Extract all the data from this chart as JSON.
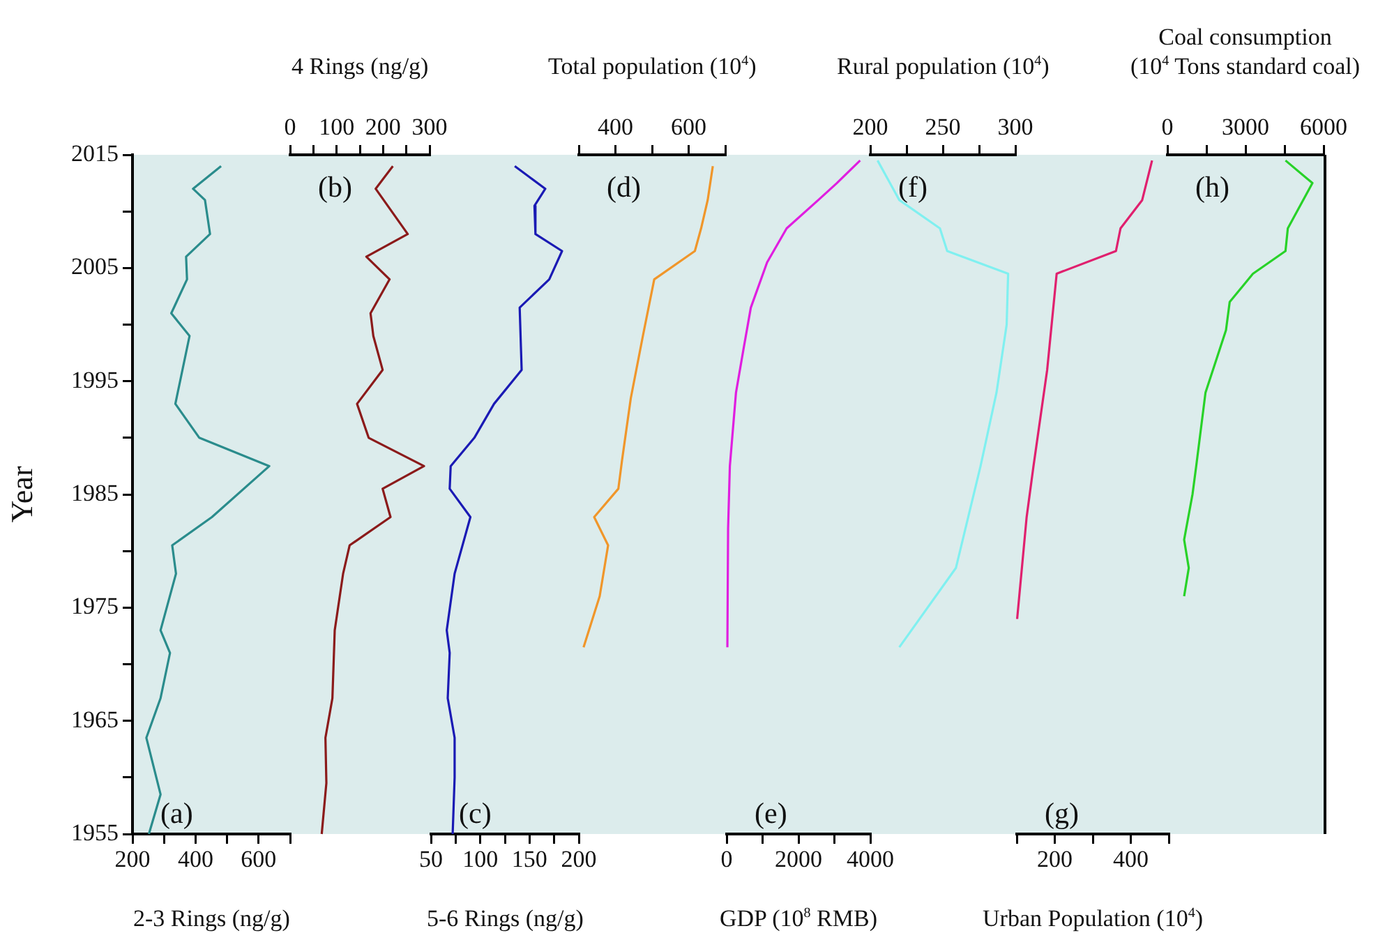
{
  "chart_data": [
    {
      "type": "line",
      "xlabel": "2-3 Rings (ng/g)",
      "ylabel": "Year",
      "annotations": [
        "(a)"
      ],
      "color": "#2a8c8c",
      "xlim": [
        200,
        700
      ],
      "xticks": [
        200,
        {
          "value": 300,
          "label": null
        },
        400,
        {
          "value": 500,
          "label": null
        },
        600,
        {
          "value": 700,
          "label": null
        }
      ],
      "ylim": [
        1955,
        2015
      ],
      "yticks": [
        1955,
        {
          "value": 1960,
          "label": null
        },
        1965,
        {
          "value": 1970,
          "label": null
        },
        1975,
        {
          "value": 1980,
          "label": null
        },
        1985,
        {
          "value": 1990,
          "label": null
        },
        1995,
        {
          "value": 2000,
          "label": null
        },
        2005,
        {
          "value": 2010,
          "label": null
        },
        2015
      ],
      "x": [
        481,
        392,
        430,
        446,
        370,
        373,
        323,
        381,
        336,
        412,
        634,
        452,
        326,
        338,
        289,
        319,
        289,
        244,
        289,
        252
      ],
      "values": [
        2014,
        2012,
        2011,
        2008,
        2006,
        2004,
        2001,
        1999,
        1993,
        1990,
        1987.5,
        1983,
        1980.5,
        1978,
        1973,
        1971,
        1967,
        1963.5,
        1958.5,
        1955
      ]
    },
    {
      "type": "line",
      "xlabel": "4 Rings (ng/g)",
      "annotations": [
        "(b)"
      ],
      "color": "#8b1a1a",
      "xlim": [
        0,
        300
      ],
      "xticks": [
        0,
        {
          "value": 50,
          "label": null
        },
        100,
        {
          "value": 150,
          "label": null
        },
        200,
        {
          "value": 250,
          "label": null
        },
        300
      ],
      "ylim": [
        1955,
        2015
      ],
      "tick_labels": "x",
      "x": [
        221,
        184,
        253,
        164,
        214,
        173,
        179,
        199,
        144,
        169,
        288,
        199,
        216,
        128,
        114,
        96,
        91,
        76,
        78,
        68
      ],
      "values": [
        2014,
        2012,
        2008,
        2006,
        2004,
        2001,
        1999,
        1996,
        1993,
        1990,
        1987.5,
        1985.5,
        1983,
        1980.5,
        1978,
        1973,
        1967,
        1963.5,
        1959.5,
        1955
      ]
    },
    {
      "type": "line",
      "xlabel": "5-6 Rings (ng/g)",
      "annotations": [
        "(c)"
      ],
      "color": "#1a1ab4",
      "xlim": [
        50,
        200
      ],
      "xticks": [
        50,
        {
          "value": 75,
          "label": null
        },
        100,
        {
          "value": 125,
          "label": null
        },
        150,
        {
          "value": 175,
          "label": null
        },
        200
      ],
      "ylim": [
        1955,
        2015
      ],
      "tick_labels": "x",
      "x": [
        135,
        166,
        155,
        156,
        183,
        170,
        140,
        142,
        114,
        94,
        70,
        69,
        90,
        74,
        66,
        69,
        67,
        74,
        74,
        72
      ],
      "values": [
        2014,
        2012,
        2010.5,
        2008,
        2006.5,
        2004,
        2001.5,
        1996,
        1993,
        1990,
        1987.5,
        1985.5,
        1983,
        1978,
        1973,
        1971,
        1967,
        1963.5,
        1960,
        1955
      ]
    },
    {
      "type": "line",
      "xlabel": "Total population (10$^{4}$)",
      "annotations": [
        "(d)"
      ],
      "color": "#f0962a",
      "xlim": [
        300,
        700
      ],
      "xticks": [
        {
          "value": 300,
          "label": null
        },
        400,
        {
          "value": 500,
          "label": null
        },
        600,
        {
          "value": 700,
          "label": null
        }
      ],
      "ylim": [
        1955,
        2015
      ],
      "tick_labels": "x",
      "x": [
        666,
        652,
        634,
        617,
        506,
        475,
        442,
        418,
        408,
        342,
        380,
        357,
        313
      ],
      "values": [
        2014,
        2011,
        2008.5,
        2006.5,
        2004,
        1999,
        1993.5,
        1988,
        1985.5,
        1983,
        1980.5,
        1976,
        1971.5
      ]
    },
    {
      "type": "line",
      "xlabel": "GDP (10$^{8}$ RMB)",
      "annotations": [
        "(e)"
      ],
      "color": "#e01ee0",
      "xlim": [
        0,
        4000
      ],
      "xticks": [
        0,
        {
          "value": 1000,
          "label": null
        },
        2000,
        {
          "value": 3000,
          "label": null
        },
        4000
      ],
      "ylim": [
        1955,
        2015
      ],
      "tick_labels": "x",
      "x": [
        3716,
        3068,
        2551,
        1670,
        1126,
        673,
        478,
        260,
        89,
        40,
        20
      ],
      "values": [
        2014.5,
        2012.5,
        2011,
        2008.5,
        2005.5,
        2001.5,
        1998,
        1994,
        1987.5,
        1982,
        1971.5
      ]
    },
    {
      "type": "line",
      "xlabel": "Rural population (10$^{4}$)",
      "annotations": [
        "(f)"
      ],
      "color": "#80f0f0",
      "xlim": [
        200,
        300
      ],
      "xticks": [
        200,
        {
          "value": 225,
          "label": null
        },
        250,
        {
          "value": 275,
          "label": null
        },
        300
      ],
      "ylim": [
        1955,
        2015
      ],
      "tick_labels": "x",
      "x": [
        205,
        220,
        248,
        253,
        295,
        294,
        287,
        276,
        259,
        220
      ],
      "values": [
        2014.5,
        2011,
        2008.5,
        2006.5,
        2004.5,
        2000,
        1994,
        1987.5,
        1978.5,
        1971.5
      ]
    },
    {
      "type": "line",
      "xlabel": "Urban Population (10$^{4}$)",
      "annotations": [
        "(g)"
      ],
      "color": "#e0206e",
      "xlim": [
        100,
        500
      ],
      "xticks": [
        {
          "value": 100,
          "label": null
        },
        200,
        {
          "value": 300,
          "label": null
        },
        400,
        {
          "value": 500,
          "label": null
        }
      ],
      "ylim": [
        1955,
        2015
      ],
      "tick_labels": "x",
      "x": [
        456,
        430,
        373,
        361,
        205,
        180,
        144,
        126,
        101
      ],
      "values": [
        2014.5,
        2011,
        2008.5,
        2006.5,
        2004.5,
        1996,
        1987.5,
        1983,
        1974
      ]
    },
    {
      "type": "line",
      "xlabel": "Coal consumption\n(10$^{4}$ Tons standard coal)",
      "annotations": [
        "(h)"
      ],
      "color": "#28d228",
      "xlim": [
        0,
        6000
      ],
      "xticks": [
        0,
        {
          "value": 1500,
          "label": null
        },
        3000,
        {
          "value": 4500,
          "label": null
        },
        6000
      ],
      "ylim": [
        1955,
        2015
      ],
      "tick_labels": "x",
      "x": [
        4536,
        5571,
        4625,
        4536,
        3286,
        2393,
        2250,
        1464,
        1107,
        964,
        643,
        821,
        643
      ],
      "values": [
        2014.5,
        2012.5,
        2008.5,
        2006.5,
        2004.5,
        2002,
        1999.5,
        1994,
        1987.5,
        1985,
        1981,
        1978.5,
        1976
      ]
    }
  ]
}
